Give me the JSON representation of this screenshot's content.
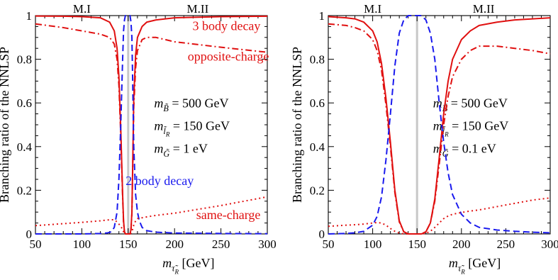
{
  "chart_data": [
    {
      "type": "line",
      "ylabel": "Branching ratio of the NNLSP",
      "xlabel": {
        "var": "m",
        "sub": "τ̃",
        "subsub": "R",
        "unit": "[GeV]"
      },
      "xlim": [
        50,
        300
      ],
      "ylim": [
        0,
        1
      ],
      "xticks": [
        50,
        100,
        150,
        200,
        250,
        300
      ],
      "yticks": [
        0,
        0.2,
        0.4,
        0.6,
        0.8,
        1
      ],
      "xtick_labels": [
        "50",
        "100",
        "150",
        "200",
        "250",
        "300"
      ],
      "ytick_labels": [
        "0",
        "0.2",
        "0.4",
        "0.6",
        "0.8",
        "1"
      ],
      "region_labels": [
        {
          "text": "M.I",
          "x": 100
        },
        {
          "text": "M.II",
          "x": 225
        }
      ],
      "divider_x": 150,
      "params": [
        {
          "var": "m",
          "sub": "B̃",
          "subsub": "",
          "value": "= 500 GeV"
        },
        {
          "var": "m",
          "sub": "l̃",
          "subsub": "R",
          "value": "= 150 GeV"
        },
        {
          "var": "m",
          "sub": "G̃",
          "subsub": "",
          "value": "= 1 eV"
        }
      ],
      "annotations": [
        {
          "text": "3 body decay",
          "x": 256,
          "y": 0.95,
          "color": "#e01010"
        },
        {
          "text": "opposite-charge",
          "x": 258,
          "y": 0.81,
          "color": "#e01010"
        },
        {
          "text": "2 body decay",
          "x": 184,
          "y": 0.24,
          "color": "#1a1aee"
        },
        {
          "text": "same-charge",
          "x": 258,
          "y": 0.085,
          "color": "#e01010"
        }
      ],
      "series": [
        {
          "style": "solid",
          "color": "#e01010",
          "x": [
            50,
            80,
            100,
            120,
            130,
            135,
            138,
            140,
            142,
            144,
            145,
            146,
            147,
            150,
            152,
            153,
            154,
            155,
            156,
            158,
            160,
            165,
            170,
            180,
            200,
            250,
            300
          ],
          "y": [
            0.998,
            0.997,
            0.995,
            0.99,
            0.97,
            0.93,
            0.85,
            0.72,
            0.48,
            0.18,
            0.06,
            0.01,
            0,
            0,
            0,
            0.02,
            0.1,
            0.35,
            0.62,
            0.82,
            0.9,
            0.95,
            0.97,
            0.98,
            0.99,
            0.995,
            0.997
          ]
        },
        {
          "style": "dashdot",
          "color": "#e01010",
          "x": [
            50,
            80,
            100,
            120,
            130,
            135,
            138,
            140,
            142,
            144,
            145,
            146,
            147,
            150,
            152,
            153,
            154,
            155,
            156,
            158,
            160,
            165,
            170,
            180,
            200,
            250,
            300
          ],
          "y": [
            0.962,
            0.945,
            0.93,
            0.915,
            0.9,
            0.87,
            0.8,
            0.68,
            0.45,
            0.17,
            0.05,
            0.01,
            0,
            0,
            0,
            0.02,
            0.09,
            0.33,
            0.58,
            0.76,
            0.84,
            0.89,
            0.9,
            0.9,
            0.88,
            0.855,
            0.832
          ]
        },
        {
          "style": "dashed",
          "color": "#1a1aee",
          "x": [
            50,
            100,
            120,
            128,
            132,
            135,
            138,
            140,
            142,
            144,
            145,
            146,
            147,
            148,
            150,
            152,
            153,
            154,
            155,
            156,
            158,
            160,
            162,
            165,
            170,
            180,
            200,
            250,
            300
          ],
          "y": [
            0,
            0,
            0.002,
            0.005,
            0.01,
            0.03,
            0.1,
            0.25,
            0.5,
            0.8,
            0.93,
            0.98,
            1,
            1,
            1,
            1,
            0.97,
            0.9,
            0.66,
            0.4,
            0.18,
            0.1,
            0.06,
            0.03,
            0.015,
            0.008,
            0.004,
            0.002,
            0.001
          ]
        },
        {
          "style": "dotted",
          "color": "#e01010",
          "x": [
            50,
            80,
            100,
            120,
            130,
            135,
            138,
            140,
            142,
            144,
            145,
            146,
            147,
            150,
            152,
            153,
            154,
            155,
            156,
            158,
            160,
            170,
            180,
            200,
            250,
            300
          ],
          "y": [
            0.038,
            0.047,
            0.053,
            0.06,
            0.065,
            0.065,
            0.055,
            0.045,
            0.035,
            0.02,
            0.01,
            0.004,
            0,
            0,
            0,
            0.004,
            0.01,
            0.025,
            0.04,
            0.06,
            0.07,
            0.078,
            0.085,
            0.095,
            0.13,
            0.17
          ]
        }
      ]
    },
    {
      "type": "line",
      "ylabel": "Branching ratio of the NNLSP",
      "xlabel": {
        "var": "m",
        "sub": "τ̃",
        "subsub": "R",
        "unit": "[GeV]"
      },
      "xlim": [
        50,
        300
      ],
      "ylim": [
        0,
        1
      ],
      "xticks": [
        50,
        100,
        150,
        200,
        250,
        300
      ],
      "yticks": [
        0,
        0.2,
        0.4,
        0.6,
        0.8,
        1
      ],
      "xtick_labels": [
        "50",
        "100",
        "150",
        "200",
        "250",
        "300"
      ],
      "ytick_labels": [
        "0",
        "0.2",
        "0.4",
        "0.6",
        "0.8",
        "1"
      ],
      "region_labels": [
        {
          "text": "M.I",
          "x": 100
        },
        {
          "text": "M.II",
          "x": 225
        }
      ],
      "divider_x": 150,
      "params": [
        {
          "var": "m",
          "sub": "B̃",
          "subsub": "",
          "value": "= 500 GeV"
        },
        {
          "var": "m",
          "sub": "l̃",
          "subsub": "R",
          "value": "= 150 GeV"
        },
        {
          "var": "m",
          "sub": "G̃",
          "subsub": "",
          "value": "= 0.1 eV"
        }
      ],
      "annotations": [],
      "series": [
        {
          "style": "solid",
          "color": "#e01010",
          "x": [
            50,
            70,
            80,
            90,
            100,
            105,
            110,
            115,
            120,
            125,
            130,
            135,
            140,
            145,
            150,
            155,
            160,
            165,
            170,
            175,
            180,
            185,
            190,
            200,
            210,
            220,
            240,
            260,
            280,
            300
          ],
          "y": [
            0.995,
            0.99,
            0.985,
            0.97,
            0.93,
            0.88,
            0.78,
            0.62,
            0.42,
            0.2,
            0.06,
            0.01,
            0,
            0,
            0,
            0,
            0.01,
            0.05,
            0.16,
            0.35,
            0.55,
            0.7,
            0.8,
            0.89,
            0.93,
            0.955,
            0.97,
            0.98,
            0.985,
            0.99
          ]
        },
        {
          "style": "dashdot",
          "color": "#e01010",
          "x": [
            50,
            70,
            80,
            90,
            100,
            105,
            110,
            115,
            120,
            125,
            130,
            135,
            140,
            145,
            150,
            155,
            160,
            165,
            170,
            175,
            180,
            185,
            190,
            200,
            210,
            220,
            240,
            260,
            280,
            300
          ],
          "y": [
            0.962,
            0.955,
            0.945,
            0.93,
            0.89,
            0.84,
            0.75,
            0.59,
            0.4,
            0.19,
            0.055,
            0.01,
            0,
            0,
            0,
            0,
            0.01,
            0.05,
            0.15,
            0.32,
            0.5,
            0.63,
            0.72,
            0.8,
            0.84,
            0.86,
            0.86,
            0.85,
            0.84,
            0.825
          ]
        },
        {
          "style": "dashed",
          "color": "#1a1aee",
          "x": [
            50,
            70,
            80,
            90,
            100,
            105,
            110,
            115,
            120,
            125,
            130,
            135,
            140,
            145,
            150,
            155,
            160,
            165,
            170,
            175,
            180,
            185,
            190,
            200,
            210,
            220,
            240,
            260,
            280,
            300
          ],
          "y": [
            0,
            0.002,
            0.005,
            0.012,
            0.04,
            0.08,
            0.17,
            0.34,
            0.55,
            0.77,
            0.92,
            0.98,
            1,
            1,
            1,
            1,
            0.98,
            0.92,
            0.8,
            0.6,
            0.42,
            0.28,
            0.18,
            0.09,
            0.05,
            0.03,
            0.018,
            0.012,
            0.008,
            0.005
          ]
        },
        {
          "style": "dotted",
          "color": "#e01010",
          "x": [
            50,
            70,
            80,
            90,
            100,
            105,
            110,
            115,
            120,
            125,
            130,
            135,
            140,
            145,
            150,
            155,
            160,
            165,
            170,
            175,
            180,
            185,
            190,
            200,
            210,
            220,
            240,
            260,
            280,
            300
          ],
          "y": [
            0.035,
            0.04,
            0.042,
            0.045,
            0.05,
            0.052,
            0.05,
            0.04,
            0.025,
            0.012,
            0.004,
            0,
            0,
            0,
            0,
            0,
            0.003,
            0.012,
            0.03,
            0.05,
            0.07,
            0.082,
            0.09,
            0.098,
            0.105,
            0.11,
            0.125,
            0.14,
            0.155,
            0.165
          ]
        }
      ]
    }
  ]
}
